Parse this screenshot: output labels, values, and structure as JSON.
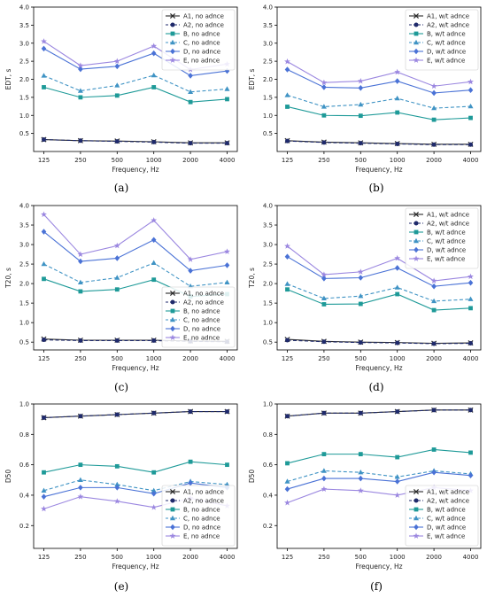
{
  "chart_data": [
    {
      "type": "line",
      "caption": "(a)",
      "xlabel": "Frequency, Hz",
      "ylabel": "EDT, s",
      "categories": [
        "125",
        "250",
        "500",
        "1000",
        "2000",
        "4000"
      ],
      "ylim": [
        0.0,
        4.0
      ],
      "yticks": [
        "0.5",
        "1.0",
        "1.5",
        "2.0",
        "2.5",
        "3.0",
        "3.5",
        "4.0"
      ],
      "legend_position": "top-right",
      "grid": false,
      "series": [
        {
          "name": "A1, no adnce",
          "values": [
            0.33,
            0.3,
            0.29,
            0.27,
            0.24,
            0.24
          ],
          "color": "#2b2b2b",
          "marker": "x",
          "dash": "solid"
        },
        {
          "name": "A2, no adnce",
          "values": [
            0.33,
            0.3,
            0.28,
            0.26,
            0.23,
            0.23
          ],
          "color": "#1f2a6b",
          "marker": "circle",
          "dash": "dashed"
        },
        {
          "name": "B, no adnce",
          "values": [
            1.78,
            1.5,
            1.55,
            1.78,
            1.37,
            1.45
          ],
          "color": "#1e9a98",
          "marker": "square",
          "dash": "solid"
        },
        {
          "name": "C, no adnce",
          "values": [
            2.1,
            1.68,
            1.83,
            2.11,
            1.65,
            1.73
          ],
          "color": "#3f93c4",
          "marker": "triangle",
          "dash": "dashed"
        },
        {
          "name": "D, no adnce",
          "values": [
            2.85,
            2.28,
            2.36,
            2.72,
            2.1,
            2.23
          ],
          "color": "#4a72d6",
          "marker": "diamond",
          "dash": "solid"
        },
        {
          "name": "E, no adnce",
          "values": [
            3.05,
            2.38,
            2.5,
            2.92,
            2.27,
            2.42
          ],
          "color": "#9b87e0",
          "marker": "star",
          "dash": "solid"
        }
      ]
    },
    {
      "type": "line",
      "caption": "(b)",
      "xlabel": "Frequency, Hz",
      "ylabel": "EDT, s",
      "categories": [
        "125",
        "250",
        "500",
        "1000",
        "2000",
        "4000"
      ],
      "ylim": [
        0.0,
        4.0
      ],
      "yticks": [
        "0.5",
        "1.0",
        "1.5",
        "2.0",
        "2.5",
        "3.0",
        "3.5",
        "4.0"
      ],
      "legend_position": "top-right",
      "grid": false,
      "series": [
        {
          "name": "A1, w/t adnce",
          "values": [
            0.3,
            0.26,
            0.24,
            0.22,
            0.2,
            0.2
          ],
          "color": "#2b2b2b",
          "marker": "x",
          "dash": "solid"
        },
        {
          "name": "A2, w/t adnce",
          "values": [
            0.29,
            0.25,
            0.23,
            0.21,
            0.19,
            0.19
          ],
          "color": "#1f2a6b",
          "marker": "circle",
          "dash": "dashed"
        },
        {
          "name": "B, w/t adnce",
          "values": [
            1.24,
            1.0,
            0.99,
            1.08,
            0.88,
            0.93
          ],
          "color": "#1e9a98",
          "marker": "square",
          "dash": "solid"
        },
        {
          "name": "C, w/t adnce",
          "values": [
            1.56,
            1.24,
            1.3,
            1.47,
            1.2,
            1.25
          ],
          "color": "#3f93c4",
          "marker": "triangle",
          "dash": "dashed"
        },
        {
          "name": "D, w/t adnce",
          "values": [
            2.27,
            1.78,
            1.76,
            1.95,
            1.62,
            1.7
          ],
          "color": "#4a72d6",
          "marker": "diamond",
          "dash": "solid"
        },
        {
          "name": "E, w/t adnce",
          "values": [
            2.49,
            1.91,
            1.95,
            2.2,
            1.81,
            1.93
          ],
          "color": "#9b87e0",
          "marker": "star",
          "dash": "solid"
        }
      ]
    },
    {
      "type": "line",
      "caption": "(c)",
      "xlabel": "Frequency, Hz",
      "ylabel": "T20, s",
      "categories": [
        "125",
        "250",
        "500",
        "1000",
        "2000",
        "4000"
      ],
      "ylim": [
        0.3,
        4.0
      ],
      "yticks": [
        "0.5",
        "1.0",
        "1.5",
        "2.0",
        "2.5",
        "3.0",
        "3.5",
        "4.0"
      ],
      "legend_position": "bottom-right",
      "grid": false,
      "series": [
        {
          "name": "A1, no adnce",
          "values": [
            0.58,
            0.55,
            0.55,
            0.55,
            0.53,
            0.52
          ],
          "color": "#2b2b2b",
          "marker": "x",
          "dash": "solid"
        },
        {
          "name": "A2, no adnce",
          "values": [
            0.56,
            0.54,
            0.54,
            0.54,
            0.52,
            0.51
          ],
          "color": "#1f2a6b",
          "marker": "circle",
          "dash": "dashed"
        },
        {
          "name": "B, no adnce",
          "values": [
            2.12,
            1.8,
            1.85,
            2.1,
            1.67,
            1.73
          ],
          "color": "#1e9a98",
          "marker": "square",
          "dash": "solid"
        },
        {
          "name": "C, no adnce",
          "values": [
            2.5,
            2.03,
            2.15,
            2.53,
            1.93,
            2.03
          ],
          "color": "#3f93c4",
          "marker": "triangle",
          "dash": "dashed"
        },
        {
          "name": "D, no adnce",
          "values": [
            3.33,
            2.57,
            2.65,
            3.12,
            2.33,
            2.47
          ],
          "color": "#4a72d6",
          "marker": "diamond",
          "dash": "solid"
        },
        {
          "name": "E, no adnce",
          "values": [
            3.77,
            2.75,
            2.97,
            3.62,
            2.62,
            2.82
          ],
          "color": "#9b87e0",
          "marker": "star",
          "dash": "solid"
        }
      ]
    },
    {
      "type": "line",
      "caption": "(d)",
      "xlabel": "Frequency, Hz",
      "ylabel": "T20, s",
      "categories": [
        "125",
        "250",
        "500",
        "1000",
        "2000",
        "4000"
      ],
      "ylim": [
        0.3,
        4.0
      ],
      "yticks": [
        "0.5",
        "1.0",
        "1.5",
        "2.0",
        "2.5",
        "3.0",
        "3.5",
        "4.0"
      ],
      "legend_position": "top-right",
      "grid": false,
      "series": [
        {
          "name": "A1, w/t adnce",
          "values": [
            0.57,
            0.52,
            0.5,
            0.49,
            0.47,
            0.48
          ],
          "color": "#2b2b2b",
          "marker": "x",
          "dash": "solid"
        },
        {
          "name": "A2, w/t adnce",
          "values": [
            0.55,
            0.51,
            0.49,
            0.48,
            0.46,
            0.47
          ],
          "color": "#1f2a6b",
          "marker": "circle",
          "dash": "dashed"
        },
        {
          "name": "B, w/t adnce",
          "values": [
            1.85,
            1.47,
            1.48,
            1.73,
            1.32,
            1.37
          ],
          "color": "#1e9a98",
          "marker": "square",
          "dash": "solid"
        },
        {
          "name": "C, w/t adnce",
          "values": [
            1.99,
            1.62,
            1.68,
            1.9,
            1.55,
            1.6
          ],
          "color": "#3f93c4",
          "marker": "triangle",
          "dash": "dashed"
        },
        {
          "name": "D, w/t adnce",
          "values": [
            2.69,
            2.13,
            2.15,
            2.4,
            1.93,
            2.02
          ],
          "color": "#4a72d6",
          "marker": "diamond",
          "dash": "solid"
        },
        {
          "name": "E, w/t adnce",
          "values": [
            2.96,
            2.23,
            2.3,
            2.65,
            2.07,
            2.18
          ],
          "color": "#9b87e0",
          "marker": "star",
          "dash": "solid"
        }
      ]
    },
    {
      "type": "line",
      "caption": "(e)",
      "xlabel": "Frequency, Hz",
      "ylabel": "D50",
      "categories": [
        "125",
        "250",
        "500",
        "1000",
        "2000",
        "4000"
      ],
      "ylim": [
        0.05,
        1.0
      ],
      "yticks": [
        "0.2",
        "0.4",
        "0.6",
        "0.8",
        "1.0"
      ],
      "legend_position": "bottom-right",
      "grid": false,
      "series": [
        {
          "name": "A1, no adnce",
          "values": [
            0.91,
            0.92,
            0.93,
            0.94,
            0.95,
            0.95
          ],
          "color": "#2b2b2b",
          "marker": "x",
          "dash": "solid"
        },
        {
          "name": "A2, no adnce",
          "values": [
            0.91,
            0.92,
            0.93,
            0.94,
            0.95,
            0.95
          ],
          "color": "#1f2a6b",
          "marker": "circle",
          "dash": "dashed"
        },
        {
          "name": "B, no adnce",
          "values": [
            0.55,
            0.6,
            0.59,
            0.55,
            0.62,
            0.6
          ],
          "color": "#1e9a98",
          "marker": "square",
          "dash": "solid"
        },
        {
          "name": "C, no adnce",
          "values": [
            0.43,
            0.5,
            0.47,
            0.43,
            0.49,
            0.47
          ],
          "color": "#3f93c4",
          "marker": "triangle",
          "dash": "dashed"
        },
        {
          "name": "D, no adnce",
          "values": [
            0.39,
            0.45,
            0.45,
            0.41,
            0.48,
            0.45
          ],
          "color": "#4a72d6",
          "marker": "diamond",
          "dash": "solid"
        },
        {
          "name": "E, no adnce",
          "values": [
            0.31,
            0.39,
            0.36,
            0.32,
            0.38,
            0.33
          ],
          "color": "#9b87e0",
          "marker": "star",
          "dash": "solid"
        }
      ]
    },
    {
      "type": "line",
      "caption": "(f)",
      "xlabel": "Frequency, Hz",
      "ylabel": "D50",
      "categories": [
        "125",
        "250",
        "500",
        "1000",
        "2000",
        "4000"
      ],
      "ylim": [
        0.05,
        1.0
      ],
      "yticks": [
        "0.2",
        "0.4",
        "0.6",
        "0.8",
        "1.0"
      ],
      "legend_position": "bottom-right",
      "grid": false,
      "series": [
        {
          "name": "A1, w/t adnce",
          "values": [
            0.92,
            0.94,
            0.94,
            0.95,
            0.96,
            0.96
          ],
          "color": "#2b2b2b",
          "marker": "x",
          "dash": "solid"
        },
        {
          "name": "A2, w/t adnce",
          "values": [
            0.92,
            0.94,
            0.94,
            0.95,
            0.96,
            0.96
          ],
          "color": "#1f2a6b",
          "marker": "circle",
          "dash": "dashed"
        },
        {
          "name": "B, w/t adnce",
          "values": [
            0.61,
            0.67,
            0.67,
            0.65,
            0.7,
            0.68
          ],
          "color": "#1e9a98",
          "marker": "square",
          "dash": "solid"
        },
        {
          "name": "C, w/t adnce",
          "values": [
            0.49,
            0.56,
            0.55,
            0.52,
            0.56,
            0.54
          ],
          "color": "#3f93c4",
          "marker": "triangle",
          "dash": "dashed"
        },
        {
          "name": "D, w/t adnce",
          "values": [
            0.44,
            0.51,
            0.51,
            0.49,
            0.55,
            0.53
          ],
          "color": "#4a72d6",
          "marker": "diamond",
          "dash": "solid"
        },
        {
          "name": "E, w/t adnce",
          "values": [
            0.35,
            0.44,
            0.43,
            0.4,
            0.45,
            0.43
          ],
          "color": "#9b87e0",
          "marker": "star",
          "dash": "solid"
        }
      ]
    }
  ]
}
